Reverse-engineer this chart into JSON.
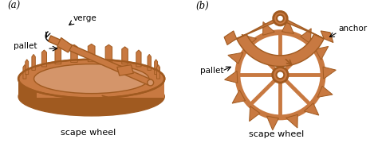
{
  "bg_color": "#ffffff",
  "copper_color": "#c87941",
  "copper_dark": "#a05a20",
  "copper_light": "#d4956a",
  "text_color": "#000000",
  "label_a": "(a)",
  "label_b": "(b)",
  "label_verge": "verge",
  "label_pallet_a": "pallet",
  "label_scapewheel_a": "scape wheel",
  "label_pallet_b": "pallet",
  "label_anchor": "anchor",
  "label_scapewheel_b": "scape wheel",
  "figsize": [
    4.74,
    1.8
  ],
  "dpi": 100
}
